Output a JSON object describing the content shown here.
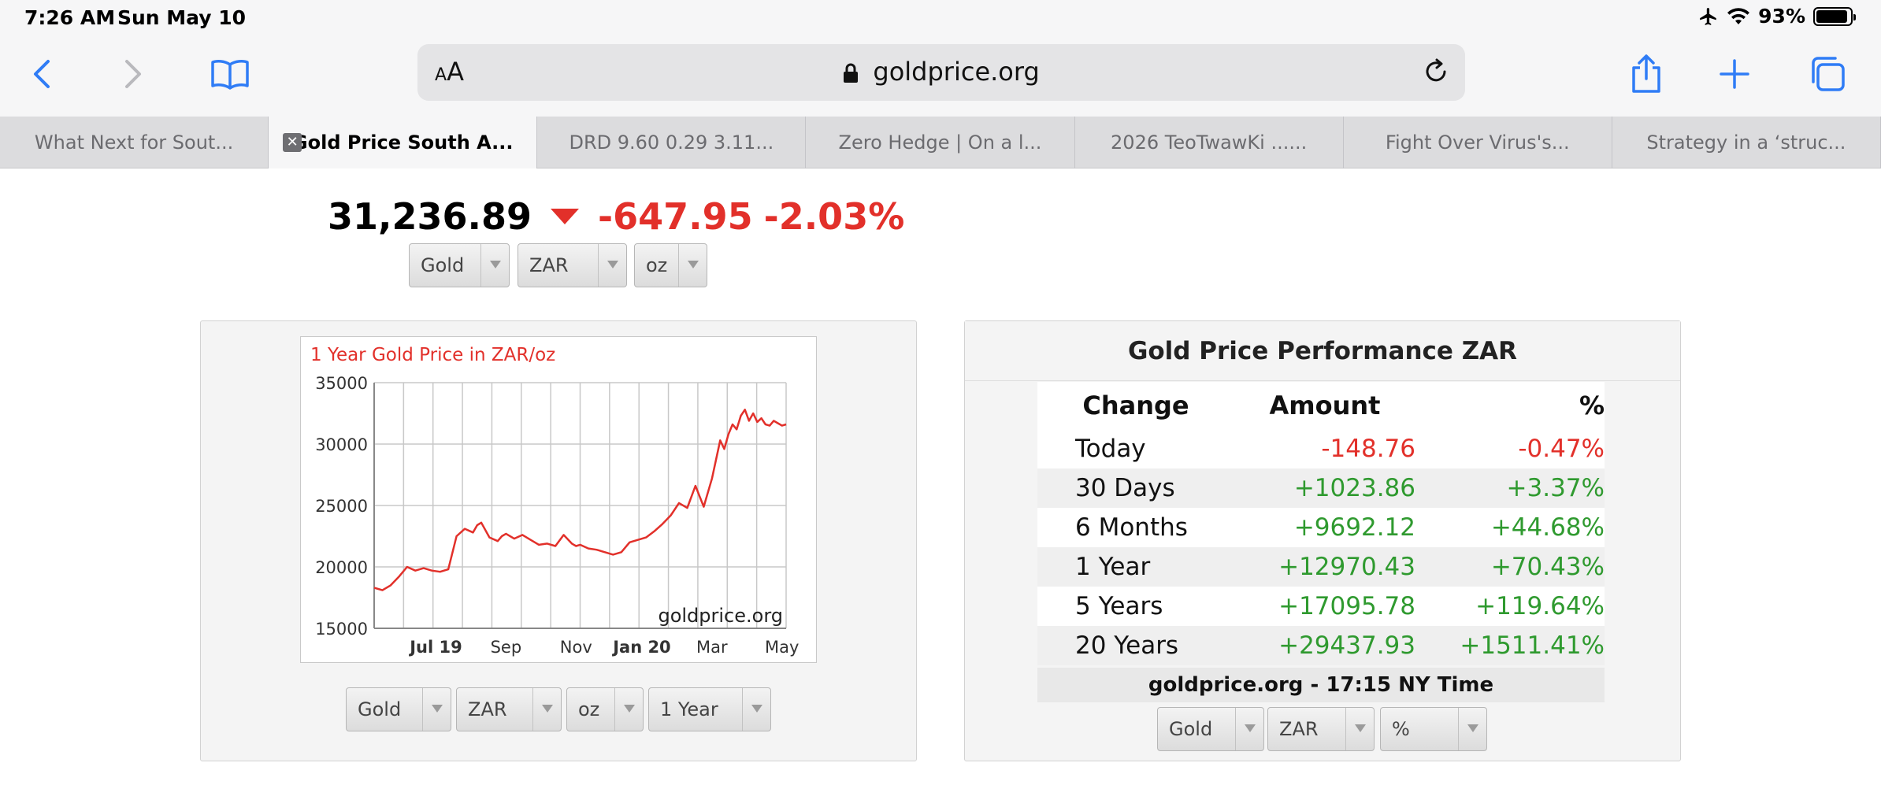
{
  "status": {
    "time": "7:26 AM",
    "date": "Sun May 10",
    "battery": "93%",
    "battery_level": 0.93
  },
  "browser": {
    "aa_label_small": "A",
    "aa_label_big": "A",
    "url": "goldprice.org",
    "tabs": [
      {
        "label": "What Next for Sout...",
        "active": false
      },
      {
        "label": "Gold Price South A...",
        "active": true
      },
      {
        "label": "DRD 9.60 0.29 3.11...",
        "active": false
      },
      {
        "label": "Zero Hedge | On a l...",
        "active": false
      },
      {
        "label": "2026 TeoTwawKi ......",
        "active": false
      },
      {
        "label": "Fight Over Virus's...",
        "active": false
      },
      {
        "label": "Strategy in a ‘struc...",
        "active": false
      }
    ],
    "tab_close_glyph": "✕"
  },
  "headline": {
    "price": "31,236.89",
    "change": "-647.95",
    "change_pct": "-2.03%"
  },
  "top_selects": {
    "metal": "Gold",
    "currency": "ZAR",
    "unit": "oz"
  },
  "chart_selects": {
    "metal": "Gold",
    "currency": "ZAR",
    "unit": "oz",
    "period": "1 Year"
  },
  "perf_selects": {
    "metal": "Gold",
    "currency": "ZAR",
    "mode": "%"
  },
  "chart_data": {
    "type": "line",
    "title": "1 Year Gold Price in ZAR/oz",
    "watermark": "goldprice.org",
    "ylim": [
      15000,
      35000
    ],
    "yticks": [
      15000,
      20000,
      25000,
      30000,
      35000
    ],
    "xticks": [
      {
        "label": "Jul 19",
        "pos": 0.15,
        "bold": true
      },
      {
        "label": "Sep",
        "pos": 0.32,
        "bold": false
      },
      {
        "label": "Nov",
        "pos": 0.49,
        "bold": false
      },
      {
        "label": "Jan 20",
        "pos": 0.65,
        "bold": true
      },
      {
        "label": "Mar",
        "pos": 0.82,
        "bold": false
      },
      {
        "label": "May",
        "pos": 0.99,
        "bold": false
      }
    ],
    "series": [
      {
        "color": "#e2302a",
        "x": [
          0,
          0.02,
          0.04,
          0.06,
          0.08,
          0.1,
          0.12,
          0.14,
          0.16,
          0.18,
          0.2,
          0.22,
          0.24,
          0.25,
          0.26,
          0.28,
          0.3,
          0.31,
          0.32,
          0.34,
          0.36,
          0.38,
          0.4,
          0.42,
          0.44,
          0.46,
          0.48,
          0.49,
          0.5,
          0.52,
          0.54,
          0.56,
          0.58,
          0.6,
          0.62,
          0.64,
          0.66,
          0.68,
          0.7,
          0.72,
          0.74,
          0.76,
          0.78,
          0.8,
          0.82,
          0.84,
          0.85,
          0.86,
          0.87,
          0.88,
          0.89,
          0.9,
          0.91,
          0.92,
          0.93,
          0.94,
          0.95,
          0.96,
          0.97,
          0.98,
          0.99,
          1.0
        ],
        "y": [
          18300,
          18100,
          18500,
          19200,
          20000,
          19700,
          19900,
          19700,
          19600,
          19800,
          22500,
          23100,
          22800,
          23400,
          23600,
          22400,
          22100,
          22500,
          22700,
          22300,
          22600,
          22200,
          21800,
          21900,
          21700,
          22600,
          21900,
          21700,
          21800,
          21500,
          21400,
          21200,
          21000,
          21200,
          22000,
          22200,
          22400,
          22900,
          23500,
          24200,
          25200,
          24800,
          26600,
          24900,
          27200,
          30300,
          29600,
          30800,
          31600,
          31200,
          32300,
          32800,
          31900,
          32500,
          31800,
          32100,
          31600,
          31500,
          31900,
          31700,
          31500,
          31600
        ]
      }
    ]
  },
  "performance": {
    "title": "Gold Price Performance ZAR",
    "headers": [
      "Change",
      "Amount",
      "%"
    ],
    "rows": [
      {
        "label": "Today",
        "amount": "-148.76",
        "pct": "-0.47%",
        "neg": true
      },
      {
        "label": "30 Days",
        "amount": "+1023.86",
        "pct": "+3.37%",
        "neg": false
      },
      {
        "label": "6 Months",
        "amount": "+9692.12",
        "pct": "+44.68%",
        "neg": false
      },
      {
        "label": "1 Year",
        "amount": "+12970.43",
        "pct": "+70.43%",
        "neg": false
      },
      {
        "label": "5 Years",
        "amount": "+17095.78",
        "pct": "+119.64%",
        "neg": false
      },
      {
        "label": "20 Years",
        "amount": "+29437.93",
        "pct": "+1511.41%",
        "neg": false
      }
    ],
    "footer": "goldprice.org - 17:15 NY Time"
  },
  "colors": {
    "negative": "#e2302a",
    "positive": "#2f9a2f",
    "accent": "#2f7cf6"
  }
}
